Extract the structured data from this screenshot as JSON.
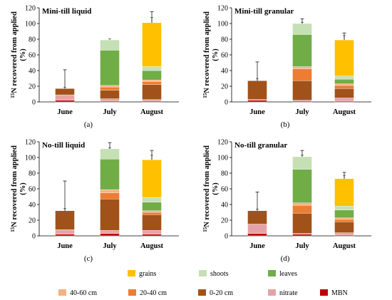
{
  "chart_data": [
    {
      "type": "bar",
      "stacked": true,
      "panel_label": "(a)",
      "title": "Mini-till liquid",
      "ylabel": "15N recovered from applied (%)",
      "ylim": [
        0,
        120
      ],
      "yticks": [
        0,
        20,
        40,
        60,
        80,
        100,
        120
      ],
      "categories": [
        "June",
        "July",
        "August"
      ],
      "series": [
        {
          "name": "MBN",
          "values": [
            2,
            1,
            1
          ]
        },
        {
          "name": "nitrate",
          "values": [
            7,
            3,
            2
          ]
        },
        {
          "name": "0-20 cm",
          "values": [
            8,
            11,
            19
          ]
        },
        {
          "name": "20-40 cm",
          "values": [
            0,
            4,
            4
          ]
        },
        {
          "name": "40-60 cm",
          "values": [
            0,
            2,
            2
          ]
        },
        {
          "name": "leaves",
          "values": [
            0,
            45,
            12
          ]
        },
        {
          "name": "shoots",
          "values": [
            0,
            13,
            5
          ]
        },
        {
          "name": "grains",
          "values": [
            0,
            0,
            56
          ]
        }
      ],
      "totals": [
        17,
        79,
        101
      ],
      "errors": [
        24,
        0,
        14
      ]
    },
    {
      "type": "bar",
      "stacked": true,
      "panel_label": "(b)",
      "title": "Mini-till granular",
      "ylabel": "15N recovered from applied (%)",
      "ylim": [
        0,
        120
      ],
      "yticks": [
        0,
        20,
        40,
        60,
        80,
        100,
        120
      ],
      "categories": [
        "June",
        "July",
        "August"
      ],
      "series": [
        {
          "name": "MBN",
          "values": [
            2,
            1,
            1
          ]
        },
        {
          "name": "nitrate",
          "values": [
            1,
            1,
            4
          ]
        },
        {
          "name": "0-20 cm",
          "values": [
            24,
            25,
            12
          ]
        },
        {
          "name": "20-40 cm",
          "values": [
            0,
            15,
            4
          ]
        },
        {
          "name": "40-60 cm",
          "values": [
            0,
            3,
            2
          ]
        },
        {
          "name": "leaves",
          "values": [
            0,
            41,
            6
          ]
        },
        {
          "name": "shoots",
          "values": [
            0,
            14,
            4
          ]
        },
        {
          "name": "grains",
          "values": [
            0,
            0,
            46
          ]
        }
      ],
      "totals": [
        27,
        100,
        79
      ],
      "errors": [
        24,
        6,
        9
      ]
    },
    {
      "type": "bar",
      "stacked": true,
      "panel_label": "(c)",
      "title": "No-till liquid",
      "ylabel": "15N recovered from applied (%)",
      "ylim": [
        0,
        120
      ],
      "yticks": [
        0,
        20,
        40,
        60,
        80,
        100,
        120
      ],
      "categories": [
        "June",
        "July",
        "August"
      ],
      "series": [
        {
          "name": "MBN",
          "values": [
            2,
            3,
            2
          ]
        },
        {
          "name": "nitrate",
          "values": [
            6,
            4,
            5
          ]
        },
        {
          "name": "0-20 cm",
          "values": [
            24,
            40,
            20
          ]
        },
        {
          "name": "20-40 cm",
          "values": [
            0,
            8,
            3
          ]
        },
        {
          "name": "40-60 cm",
          "values": [
            0,
            4,
            2
          ]
        },
        {
          "name": "leaves",
          "values": [
            0,
            39,
            11
          ]
        },
        {
          "name": "shoots",
          "values": [
            0,
            13,
            6
          ]
        },
        {
          "name": "grains",
          "values": [
            0,
            0,
            48
          ]
        }
      ],
      "totals": [
        32,
        111,
        97
      ],
      "errors": [
        38,
        8,
        12
      ]
    },
    {
      "type": "bar",
      "stacked": true,
      "panel_label": "(d)",
      "title": "No-till granular",
      "ylabel": "15N recovered from applied (%)",
      "ylim": [
        0,
        120
      ],
      "yticks": [
        0,
        20,
        40,
        60,
        80,
        100,
        120
      ],
      "categories": [
        "June",
        "July",
        "August"
      ],
      "series": [
        {
          "name": "MBN",
          "values": [
            3,
            2,
            1
          ]
        },
        {
          "name": "nitrate",
          "values": [
            12,
            1,
            3
          ]
        },
        {
          "name": "0-20 cm",
          "values": [
            17,
            26,
            14
          ]
        },
        {
          "name": "20-40 cm",
          "values": [
            0,
            10,
            3
          ]
        },
        {
          "name": "40-60 cm",
          "values": [
            0,
            3,
            2
          ]
        },
        {
          "name": "leaves",
          "values": [
            0,
            43,
            10
          ]
        },
        {
          "name": "shoots",
          "values": [
            0,
            16,
            5
          ]
        },
        {
          "name": "grains",
          "values": [
            0,
            0,
            35
          ]
        }
      ],
      "totals": [
        32,
        101,
        73
      ],
      "errors": [
        24,
        8,
        8
      ]
    }
  ],
  "legend": {
    "row1": [
      {
        "name": "grains",
        "color": "#ffc000"
      },
      {
        "name": "shoots",
        "color": "#c5e0b4"
      },
      {
        "name": "leaves",
        "color": "#70ad47"
      }
    ],
    "row2": [
      {
        "name": "40-60 cm",
        "color": "#f4b183"
      },
      {
        "name": "20-40 cm",
        "color": "#ed7d31"
      },
      {
        "name": "0-20 cm",
        "color": "#a0521a"
      },
      {
        "name": "nitrate",
        "color": "#e6a3a6"
      },
      {
        "name": "MBN",
        "color": "#c00000"
      }
    ]
  },
  "colors": {
    "MBN": "#c00000",
    "nitrate": "#e6a3a6",
    "0-20 cm": "#a0521a",
    "20-40 cm": "#ed7d31",
    "40-60 cm": "#f4b183",
    "leaves": "#70ad47",
    "shoots": "#c5e0b4",
    "grains": "#ffc000"
  }
}
